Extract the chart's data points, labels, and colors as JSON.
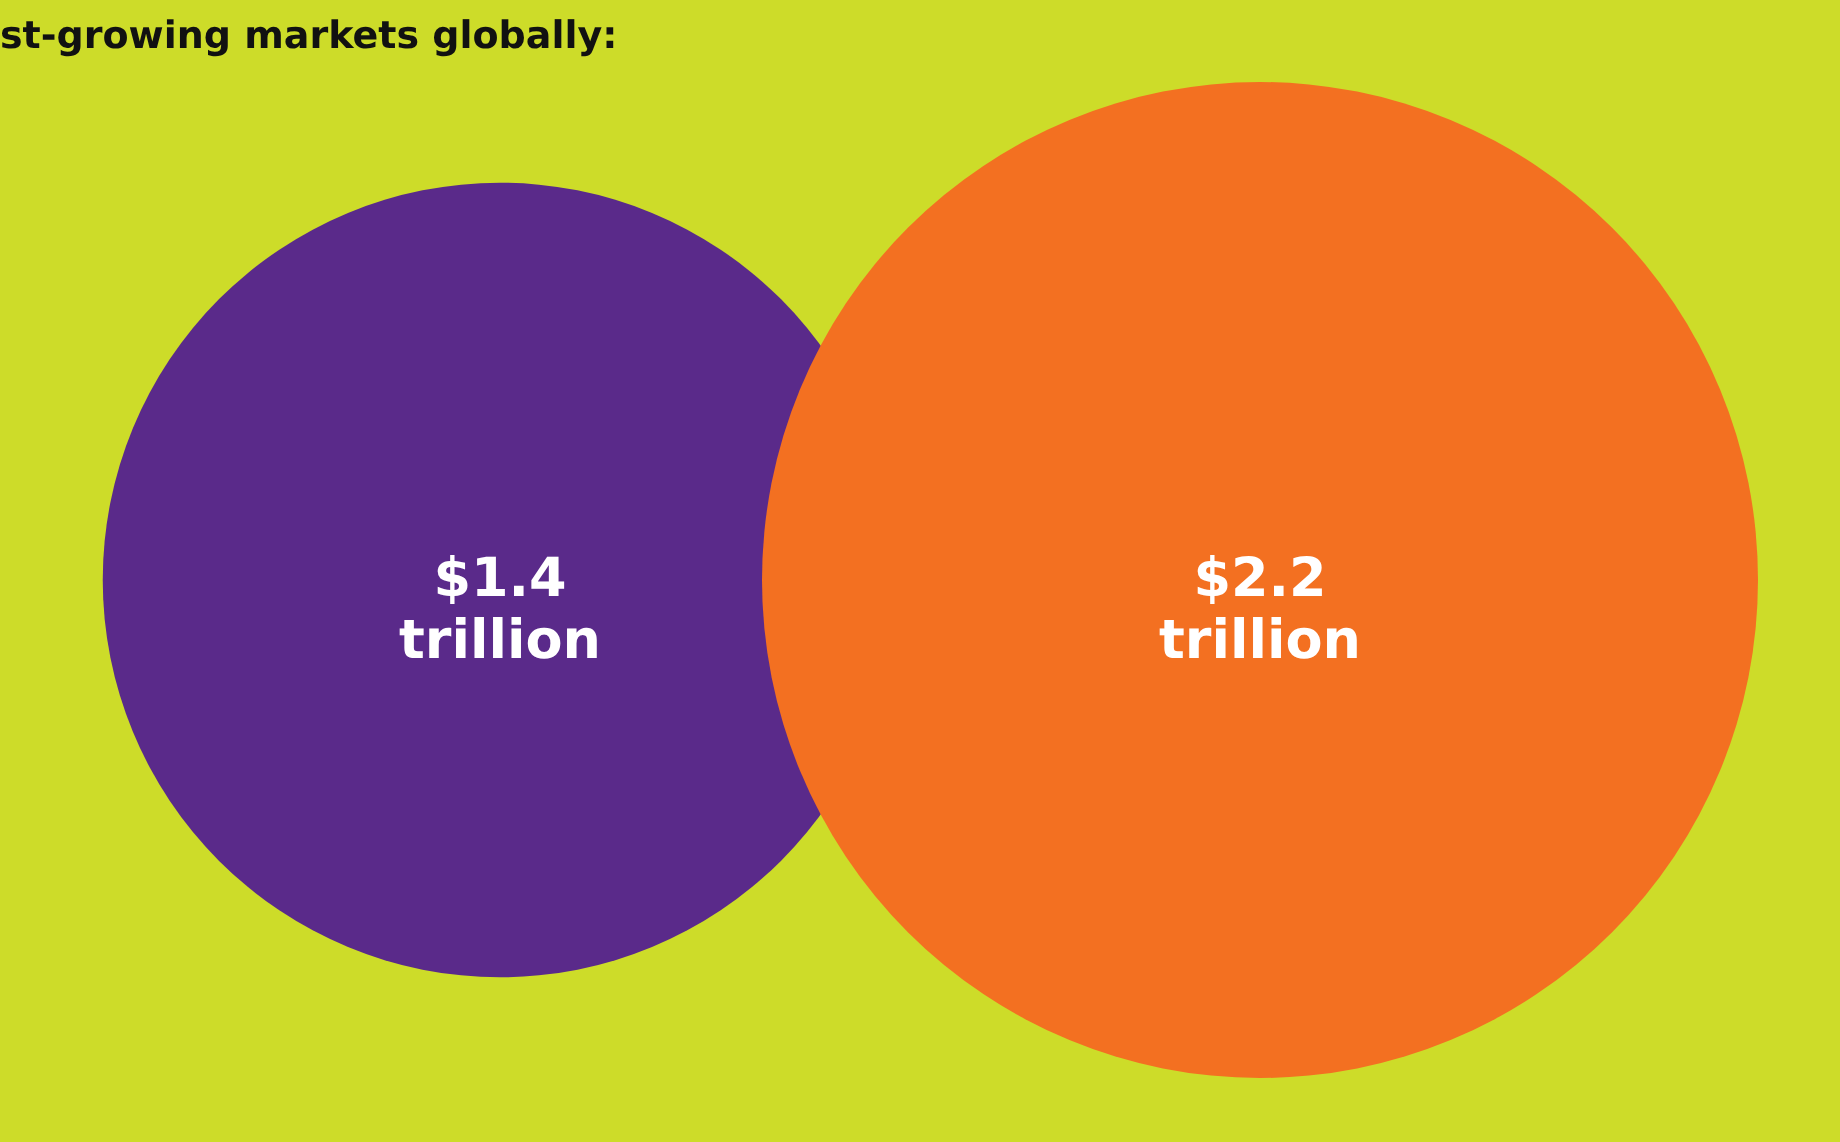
{
  "chart_data": {
    "type": "other",
    "title": "st-growing markets globally:",
    "values": [
      1.4,
      2.2
    ],
    "value_labels": [
      "$1.4 trillion",
      "$2.2 trillion"
    ],
    "colors": [
      "#5a2a8a",
      "#f37021"
    ]
  }
}
